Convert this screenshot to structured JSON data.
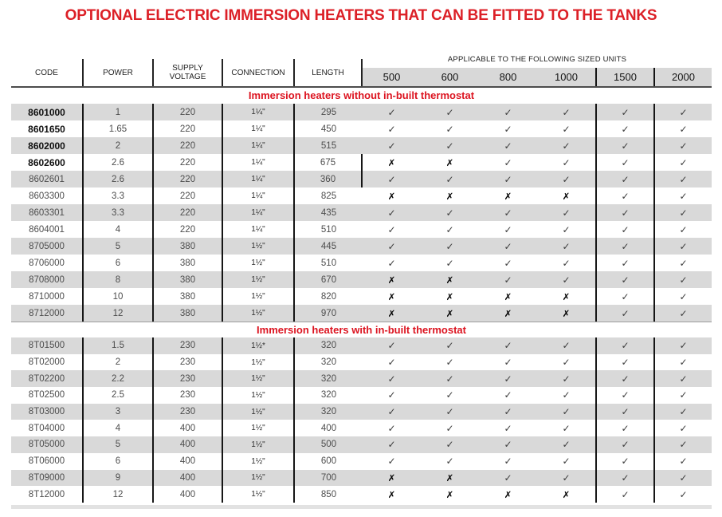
{
  "title": "OPTIONAL ELECTRIC IMMERSION HEATERS THAT CAN BE FITTED TO THE TANKS",
  "colors": {
    "accent_red": "#dc2027",
    "row_shade": "#d9d9d9",
    "grid_line": "#161616"
  },
  "glyphs": {
    "check": "✓",
    "cross": "✗"
  },
  "table": {
    "columns": {
      "code": "CODE",
      "power": "POWER",
      "voltage": "SUPPLY\nVOLTAGE",
      "connection": "CONNECTION",
      "length": "LENGTH"
    },
    "applicable_header": "APPLICABLE TO THE FOLLOWING SIZED UNITS",
    "sizes": [
      "500",
      "600",
      "800",
      "1000",
      "1500",
      "2000"
    ],
    "sections": [
      {
        "heading": "Immersion heaters without in-built thermostat",
        "rows": [
          {
            "code": "8601000",
            "power": "1",
            "voltage": "220",
            "connection": "1¼\"",
            "length": "295",
            "bold": true,
            "sizes": [
              "y",
              "y",
              "y",
              "y",
              "y",
              "y"
            ]
          },
          {
            "code": "8601650",
            "power": "1.65",
            "voltage": "220",
            "connection": "1¼\"",
            "length": "450",
            "bold": true,
            "sizes": [
              "y",
              "y",
              "y",
              "y",
              "y",
              "y"
            ]
          },
          {
            "code": "8602000",
            "power": "2",
            "voltage": "220",
            "connection": "1¼\"",
            "length": "515",
            "bold": true,
            "sizes": [
              "y",
              "y",
              "y",
              "y",
              "y",
              "y"
            ]
          },
          {
            "code": "8602600",
            "power": "2.6",
            "voltage": "220",
            "connection": "1¼\"",
            "length": "675",
            "bold": true,
            "sizes": [
              "n",
              "n",
              "y",
              "y",
              "y",
              "y"
            ]
          },
          {
            "code": "8602601",
            "power": "2.6",
            "voltage": "220",
            "connection": "1¼\"",
            "length": "360",
            "bold": false,
            "sizes": [
              "y",
              "y",
              "y",
              "y",
              "y",
              "y"
            ]
          },
          {
            "code": "8603300",
            "power": "3.3",
            "voltage": "220",
            "connection": "1¼\"",
            "length": "825",
            "bold": false,
            "sizes": [
              "n",
              "n",
              "n",
              "n",
              "y",
              "y"
            ]
          },
          {
            "code": "8603301",
            "power": "3.3",
            "voltage": "220",
            "connection": "1¼\"",
            "length": "435",
            "bold": false,
            "sizes": [
              "y",
              "y",
              "y",
              "y",
              "y",
              "y"
            ]
          },
          {
            "code": "8604001",
            "power": "4",
            "voltage": "220",
            "connection": "1¼\"",
            "length": "510",
            "bold": false,
            "sizes": [
              "y",
              "y",
              "y",
              "y",
              "y",
              "y"
            ]
          },
          {
            "code": "8705000",
            "power": "5",
            "voltage": "380",
            "connection": "1½\"",
            "length": "445",
            "bold": false,
            "sizes": [
              "y",
              "y",
              "y",
              "y",
              "y",
              "y"
            ]
          },
          {
            "code": "8706000",
            "power": "6",
            "voltage": "380",
            "connection": "1½\"",
            "length": "510",
            "bold": false,
            "sizes": [
              "y",
              "y",
              "y",
              "y",
              "y",
              "y"
            ]
          },
          {
            "code": "8708000",
            "power": "8",
            "voltage": "380",
            "connection": "1½\"",
            "length": "670",
            "bold": false,
            "sizes": [
              "n",
              "n",
              "y",
              "y",
              "y",
              "y"
            ]
          },
          {
            "code": "8710000",
            "power": "10",
            "voltage": "380",
            "connection": "1½\"",
            "length": "820",
            "bold": false,
            "sizes": [
              "n",
              "n",
              "n",
              "n",
              "y",
              "y"
            ]
          },
          {
            "code": "8712000",
            "power": "12",
            "voltage": "380",
            "connection": "1½\"",
            "length": "970",
            "bold": false,
            "sizes": [
              "n",
              "n",
              "n",
              "n",
              "y",
              "y"
            ]
          }
        ]
      },
      {
        "heading": "Immersion heaters with in-built thermostat",
        "rows": [
          {
            "code": "8T01500",
            "power": "1.5",
            "voltage": "230",
            "connection": "1½*",
            "length": "320",
            "bold": false,
            "sizes": [
              "y",
              "y",
              "y",
              "y",
              "y",
              "y"
            ]
          },
          {
            "code": "8T02000",
            "power": "2",
            "voltage": "230",
            "connection": "1½\"",
            "length": "320",
            "bold": false,
            "sizes": [
              "y",
              "y",
              "y",
              "y",
              "y",
              "y"
            ]
          },
          {
            "code": "8T02200",
            "power": "2.2",
            "voltage": "230",
            "connection": "1½\"",
            "length": "320",
            "bold": false,
            "sizes": [
              "y",
              "y",
              "y",
              "y",
              "y",
              "y"
            ]
          },
          {
            "code": "8T02500",
            "power": "2.5",
            "voltage": "230",
            "connection": "1½\"",
            "length": "320",
            "bold": false,
            "sizes": [
              "y",
              "y",
              "y",
              "y",
              "y",
              "y"
            ]
          },
          {
            "code": "8T03000",
            "power": "3",
            "voltage": "230",
            "connection": "1½\"",
            "length": "320",
            "bold": false,
            "sizes": [
              "y",
              "y",
              "y",
              "y",
              "y",
              "y"
            ]
          },
          {
            "code": "8T04000",
            "power": "4",
            "voltage": "400",
            "connection": "1½\"",
            "length": "400",
            "bold": false,
            "sizes": [
              "y",
              "y",
              "y",
              "y",
              "y",
              "y"
            ]
          },
          {
            "code": "8T05000",
            "power": "5",
            "voltage": "400",
            "connection": "1½\"",
            "length": "500",
            "bold": false,
            "sizes": [
              "y",
              "y",
              "y",
              "y",
              "y",
              "y"
            ]
          },
          {
            "code": "8T06000",
            "power": "6",
            "voltage": "400",
            "connection": "1½\"",
            "length": "600",
            "bold": false,
            "sizes": [
              "y",
              "y",
              "y",
              "y",
              "y",
              "y"
            ]
          },
          {
            "code": "8T09000",
            "power": "9",
            "voltage": "400",
            "connection": "1½\"",
            "length": "700",
            "bold": false,
            "sizes": [
              "n",
              "n",
              "y",
              "y",
              "y",
              "y"
            ]
          },
          {
            "code": "8T12000",
            "power": "12",
            "voltage": "400",
            "connection": "1½\"",
            "length": "850",
            "bold": false,
            "sizes": [
              "n",
              "n",
              "n",
              "n",
              "y",
              "y"
            ]
          }
        ]
      }
    ]
  }
}
